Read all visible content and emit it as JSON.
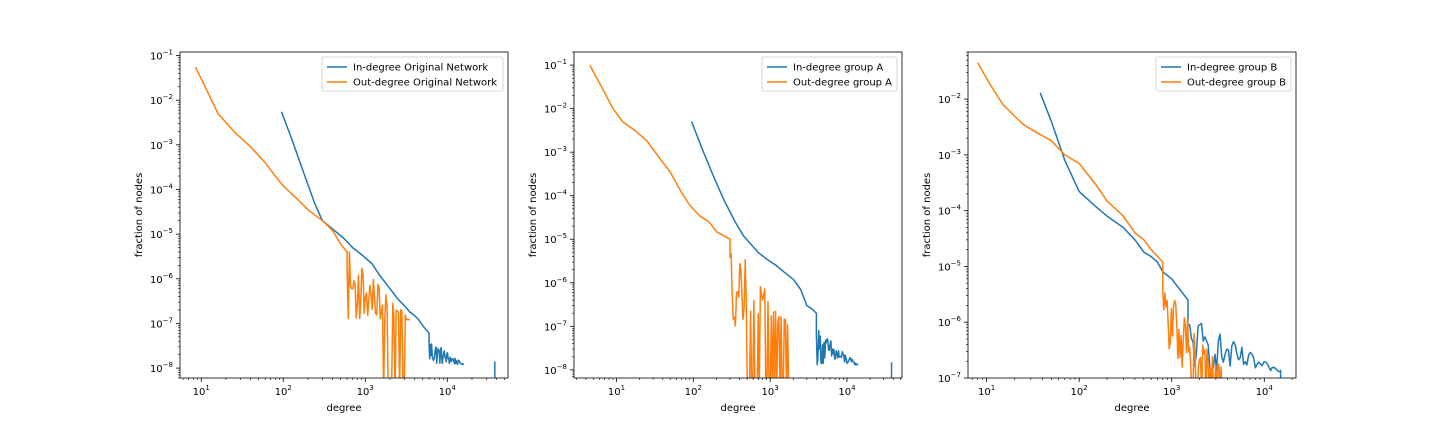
{
  "chart_data": [
    {
      "type": "line",
      "xscale": "log",
      "yscale": "log",
      "xlabel": "degree",
      "ylabel": "fraction of nodes",
      "xlim": [
        5.5,
        55000
      ],
      "ylim": [
        6e-09,
        0.12
      ],
      "xticks": [
        {
          "value": 10,
          "base": "10",
          "exp": "1"
        },
        {
          "value": 100,
          "base": "10",
          "exp": "2"
        },
        {
          "value": 1000,
          "base": "10",
          "exp": "3"
        },
        {
          "value": 10000,
          "base": "10",
          "exp": "4"
        }
      ],
      "yticks": [
        {
          "value": 1e-08,
          "base": "10",
          "exp": "−8"
        },
        {
          "value": 1e-07,
          "base": "10",
          "exp": "−7"
        },
        {
          "value": 1e-06,
          "base": "10",
          "exp": "−6"
        },
        {
          "value": 1e-05,
          "base": "10",
          "exp": "−5"
        },
        {
          "value": 0.0001,
          "base": "10",
          "exp": "−4"
        },
        {
          "value": 0.001,
          "base": "10",
          "exp": "−3"
        },
        {
          "value": 0.01,
          "base": "10",
          "exp": "−2"
        },
        {
          "value": 0.1,
          "base": "10",
          "exp": "−1"
        }
      ],
      "legend_position": "top-right",
      "series": [
        {
          "name": "In-degree Original Network",
          "color": "#1f77b4",
          "points": [
            [
              95,
              0.0055
            ],
            [
              130,
              0.0012
            ],
            [
              180,
              0.00022
            ],
            [
              240,
              5e-05
            ],
            [
              300,
              2e-05
            ],
            [
              400,
              1.3e-05
            ],
            [
              550,
              8e-06
            ],
            [
              700,
              5e-06
            ],
            [
              900,
              3.5e-06
            ],
            [
              1200,
              2.2e-06
            ],
            [
              1500,
              1.2e-06
            ],
            [
              2000,
              6e-07
            ],
            [
              2500,
              3.5e-07
            ],
            [
              3000,
              2.5e-07
            ],
            [
              3500,
              1.8e-07
            ],
            [
              4000,
              1.5e-07
            ],
            [
              4500,
              1.2e-07
            ],
            [
              5000,
              9e-08
            ],
            [
              6000,
              6e-08
            ],
            [
              7000,
              4e-08
            ],
            [
              8000,
              3e-08
            ],
            [
              9000,
              2e-08
            ],
            [
              10000,
              1.5e-08
            ],
            [
              12000,
              1.3e-08
            ]
          ],
          "noisy_tail": {
            "from": 6000,
            "to": 16000,
            "low": 1.2e-08,
            "high": 5e-08,
            "max_degree": 38000,
            "max_value": 1.4e-08
          }
        },
        {
          "name": "Out-degree Original Network",
          "color": "#ff7f0e",
          "points": [
            [
              8.5,
              0.055
            ],
            [
              12,
              0.015
            ],
            [
              16,
              0.005
            ],
            [
              25,
              0.002
            ],
            [
              40,
              0.0009
            ],
            [
              60,
              0.0004
            ],
            [
              80,
              0.0002
            ],
            [
              100,
              0.00012
            ],
            [
              150,
              6e-05
            ],
            [
              200,
              3.5e-05
            ],
            [
              300,
              2e-05
            ],
            [
              400,
              1.2e-05
            ],
            [
              500,
              6e-06
            ],
            [
              600,
              4e-06
            ],
            [
              700,
              3e-06
            ],
            [
              800,
              2e-06
            ],
            [
              1000,
              1.2e-06
            ],
            [
              1200,
              6e-07
            ],
            [
              1500,
              3e-07
            ],
            [
              2000,
              1.5e-07
            ],
            [
              2500,
              1.5e-07
            ],
            [
              3000,
              1.2e-07
            ]
          ],
          "noisy_tail": {
            "from": 600,
            "to": 3500,
            "low": 1.2e-07,
            "high": 5e-06,
            "drop_from": 1500
          }
        }
      ]
    },
    {
      "type": "line",
      "xscale": "log",
      "yscale": "log",
      "xlabel": "degree",
      "ylabel": "fraction of nodes",
      "xlim": [
        2.8,
        52000
      ],
      "ylim": [
        6.5e-09,
        0.2
      ],
      "xticks": [
        {
          "value": 10,
          "base": "10",
          "exp": "1"
        },
        {
          "value": 100,
          "base": "10",
          "exp": "2"
        },
        {
          "value": 1000,
          "base": "10",
          "exp": "3"
        },
        {
          "value": 10000,
          "base": "10",
          "exp": "4"
        }
      ],
      "yticks": [
        {
          "value": 1e-08,
          "base": "10",
          "exp": "−8"
        },
        {
          "value": 1e-07,
          "base": "10",
          "exp": "−7"
        },
        {
          "value": 1e-06,
          "base": "10",
          "exp": "−6"
        },
        {
          "value": 1e-05,
          "base": "10",
          "exp": "−5"
        },
        {
          "value": 0.0001,
          "base": "10",
          "exp": "−4"
        },
        {
          "value": 0.001,
          "base": "10",
          "exp": "−3"
        },
        {
          "value": 0.01,
          "base": "10",
          "exp": "−2"
        },
        {
          "value": 0.1,
          "base": "10",
          "exp": "−1"
        }
      ],
      "legend_position": "top-right",
      "series": [
        {
          "name": "In-degree group A",
          "color": "#1f77b4",
          "points": [
            [
              95,
              0.005
            ],
            [
              130,
              0.0012
            ],
            [
              180,
              0.0003
            ],
            [
              250,
              8e-05
            ],
            [
              350,
              2.5e-05
            ],
            [
              450,
              1.2e-05
            ],
            [
              550,
              8e-06
            ],
            [
              700,
              5e-06
            ],
            [
              900,
              3.5e-06
            ],
            [
              1200,
              2.5e-06
            ],
            [
              1500,
              1.8e-06
            ],
            [
              2000,
              1.2e-06
            ],
            [
              2500,
              7e-07
            ],
            [
              3000,
              3e-07
            ],
            [
              3500,
              2.5e-07
            ],
            [
              4000,
              2e-07
            ],
            [
              5000,
              1.5e-07
            ],
            [
              6000,
              7e-08
            ],
            [
              7000,
              5e-08
            ],
            [
              8000,
              3.5e-08
            ],
            [
              10000,
              2e-08
            ]
          ],
          "noisy_tail": {
            "from": 4000,
            "to": 14000,
            "low": 1.3e-08,
            "high": 1e-07,
            "max_degree": 38000,
            "max_value": 1.5e-08
          }
        },
        {
          "name": "Out-degree group A",
          "color": "#ff7f0e",
          "points": [
            [
              4.5,
              0.1
            ],
            [
              6.5,
              0.03
            ],
            [
              9,
              0.01
            ],
            [
              12,
              0.005
            ],
            [
              18,
              0.003
            ],
            [
              25,
              0.0018
            ],
            [
              35,
              0.0008
            ],
            [
              50,
              0.00035
            ],
            [
              70,
              0.00012
            ],
            [
              90,
              6e-05
            ],
            [
              120,
              3.5e-05
            ],
            [
              160,
              2.5e-05
            ],
            [
              200,
              1.5e-05
            ],
            [
              250,
              1.2e-05
            ],
            [
              300,
              1e-05
            ],
            [
              350,
              8e-06
            ],
            [
              400,
              5e-06
            ],
            [
              500,
              3.5e-06
            ],
            [
              600,
              2e-06
            ],
            [
              700,
              1.5e-06
            ],
            [
              800,
              1e-06
            ],
            [
              900,
              8e-07
            ],
            [
              1000,
              4e-07
            ]
          ],
          "noisy_tail": {
            "from": 300,
            "to": 1800,
            "low": 1e-07,
            "high": 1.2e-05,
            "drop_from": 500
          }
        }
      ]
    },
    {
      "type": "line",
      "xscale": "log",
      "yscale": "log",
      "xlabel": "degree",
      "ylabel": "fraction of nodes",
      "xlim": [
        6.3,
        22000
      ],
      "ylim": [
        1e-07,
        0.07
      ],
      "xticks": [
        {
          "value": 10,
          "base": "10",
          "exp": "1"
        },
        {
          "value": 100,
          "base": "10",
          "exp": "2"
        },
        {
          "value": 1000,
          "base": "10",
          "exp": "3"
        },
        {
          "value": 10000,
          "base": "10",
          "exp": "4"
        }
      ],
      "yticks": [
        {
          "value": 1e-07,
          "base": "10",
          "exp": "−7"
        },
        {
          "value": 1e-06,
          "base": "10",
          "exp": "−6"
        },
        {
          "value": 1e-05,
          "base": "10",
          "exp": "−5"
        },
        {
          "value": 0.0001,
          "base": "10",
          "exp": "−4"
        },
        {
          "value": 0.001,
          "base": "10",
          "exp": "−3"
        },
        {
          "value": 0.01,
          "base": "10",
          "exp": "−2"
        }
      ],
      "legend_position": "top-right",
      "series": [
        {
          "name": "In-degree group B",
          "color": "#1f77b4",
          "points": [
            [
              38,
              0.013
            ],
            [
              50,
              0.004
            ],
            [
              70,
              0.0008
            ],
            [
              100,
              0.00022
            ],
            [
              150,
              0.00012
            ],
            [
              200,
              8e-05
            ],
            [
              300,
              5e-05
            ],
            [
              400,
              3e-05
            ],
            [
              500,
              1.8e-05
            ],
            [
              600,
              1.5e-05
            ],
            [
              700,
              1.2e-05
            ],
            [
              800,
              8e-06
            ],
            [
              1000,
              6e-06
            ],
            [
              1200,
              4e-06
            ],
            [
              1500,
              2.5e-06
            ],
            [
              2000,
              1.5e-06
            ],
            [
              2500,
              1e-06
            ],
            [
              3000,
              7e-07
            ],
            [
              4000,
              5e-07
            ],
            [
              5000,
              4e-07
            ],
            [
              6000,
              3e-07
            ],
            [
              8000,
              2.5e-07
            ]
          ],
          "noisy_tail": {
            "from": 1500,
            "to": 15000,
            "low": 1.3e-07,
            "high": 1.5e-06,
            "max_degree": 15000,
            "max_value": 1.4e-07
          }
        },
        {
          "name": "Out-degree group B",
          "color": "#ff7f0e",
          "points": [
            [
              8,
              0.045
            ],
            [
              11,
              0.018
            ],
            [
              15,
              0.008
            ],
            [
              20,
              0.005
            ],
            [
              25,
              0.0035
            ],
            [
              35,
              0.0025
            ],
            [
              50,
              0.0018
            ],
            [
              70,
              0.001
            ],
            [
              100,
              0.0007
            ],
            [
              150,
              0.0003
            ],
            [
              200,
              0.00015
            ],
            [
              300,
              8e-05
            ],
            [
              400,
              4e-05
            ],
            [
              500,
              3e-05
            ],
            [
              600,
              2e-05
            ],
            [
              800,
              1.2e-05
            ],
            [
              1000,
              8e-06
            ],
            [
              1200,
              5e-06
            ],
            [
              1500,
              3e-06
            ],
            [
              2000,
              2e-06
            ],
            [
              2500,
              1.5e-06
            ],
            [
              3000,
              8e-07
            ]
          ],
          "noisy_tail": {
            "from": 800,
            "to": 3500,
            "low": 1.5e-07,
            "high": 8e-06,
            "drop_from": 1500
          }
        }
      ]
    }
  ]
}
